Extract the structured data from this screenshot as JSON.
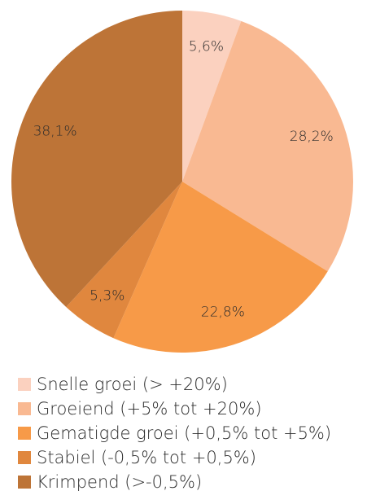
{
  "chart_data": {
    "type": "pie",
    "categories": [
      "Snelle groei (> +20%)",
      "Groeiend (+5% tot +20%)",
      "Gematigde groei (+0,5% tot +5%)",
      "Stabiel (-0,5% tot +0,5%)",
      "Krimpend (>-0,5%)"
    ],
    "values": [
      5.6,
      28.2,
      22.8,
      5.3,
      38.1
    ],
    "value_labels": [
      "5,6%",
      "28,2%",
      "22,8%",
      "5,3%",
      "38,1%"
    ],
    "colors": [
      "#fbd1bf",
      "#f9b992",
      "#f79a48",
      "#e0873e",
      "#bd7437"
    ]
  }
}
